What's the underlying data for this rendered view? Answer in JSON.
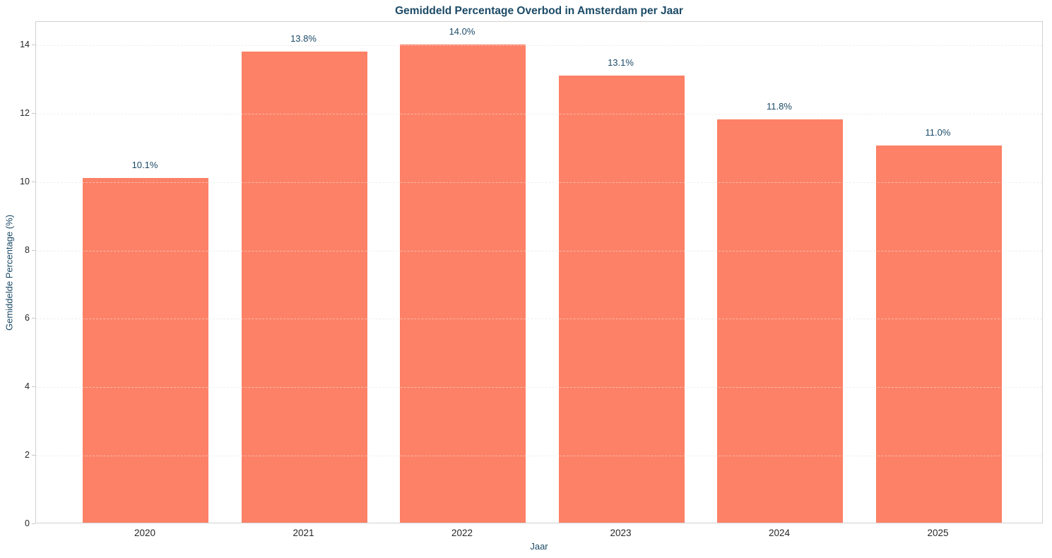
{
  "chart_data": {
    "type": "bar",
    "title": "Gemiddeld Percentage Overbod in Amsterdam per Jaar",
    "xlabel": "Jaar",
    "ylabel": "Gemiddelde Percentage (%)",
    "categories": [
      "2020",
      "2021",
      "2022",
      "2023",
      "2024",
      "2025"
    ],
    "values": [
      10.07,
      13.78,
      13.97,
      13.06,
      11.79,
      11.02
    ],
    "bar_labels": [
      "10.1%",
      "13.8%",
      "14.0%",
      "13.1%",
      "11.8%",
      "11.0%"
    ],
    "yticks": [
      0,
      2,
      4,
      6,
      8,
      10,
      12,
      14
    ],
    "ylim": [
      0,
      14.68
    ],
    "grid": "horizontal-dashed",
    "legend": "none",
    "colors": {
      "bar": "#fc8166",
      "title_and_labels": "#1b4a66",
      "tick_text": "#262626",
      "gridline": "#e2e2e2",
      "plot_border": "#d2d2d2",
      "background": "#ffffff"
    }
  }
}
